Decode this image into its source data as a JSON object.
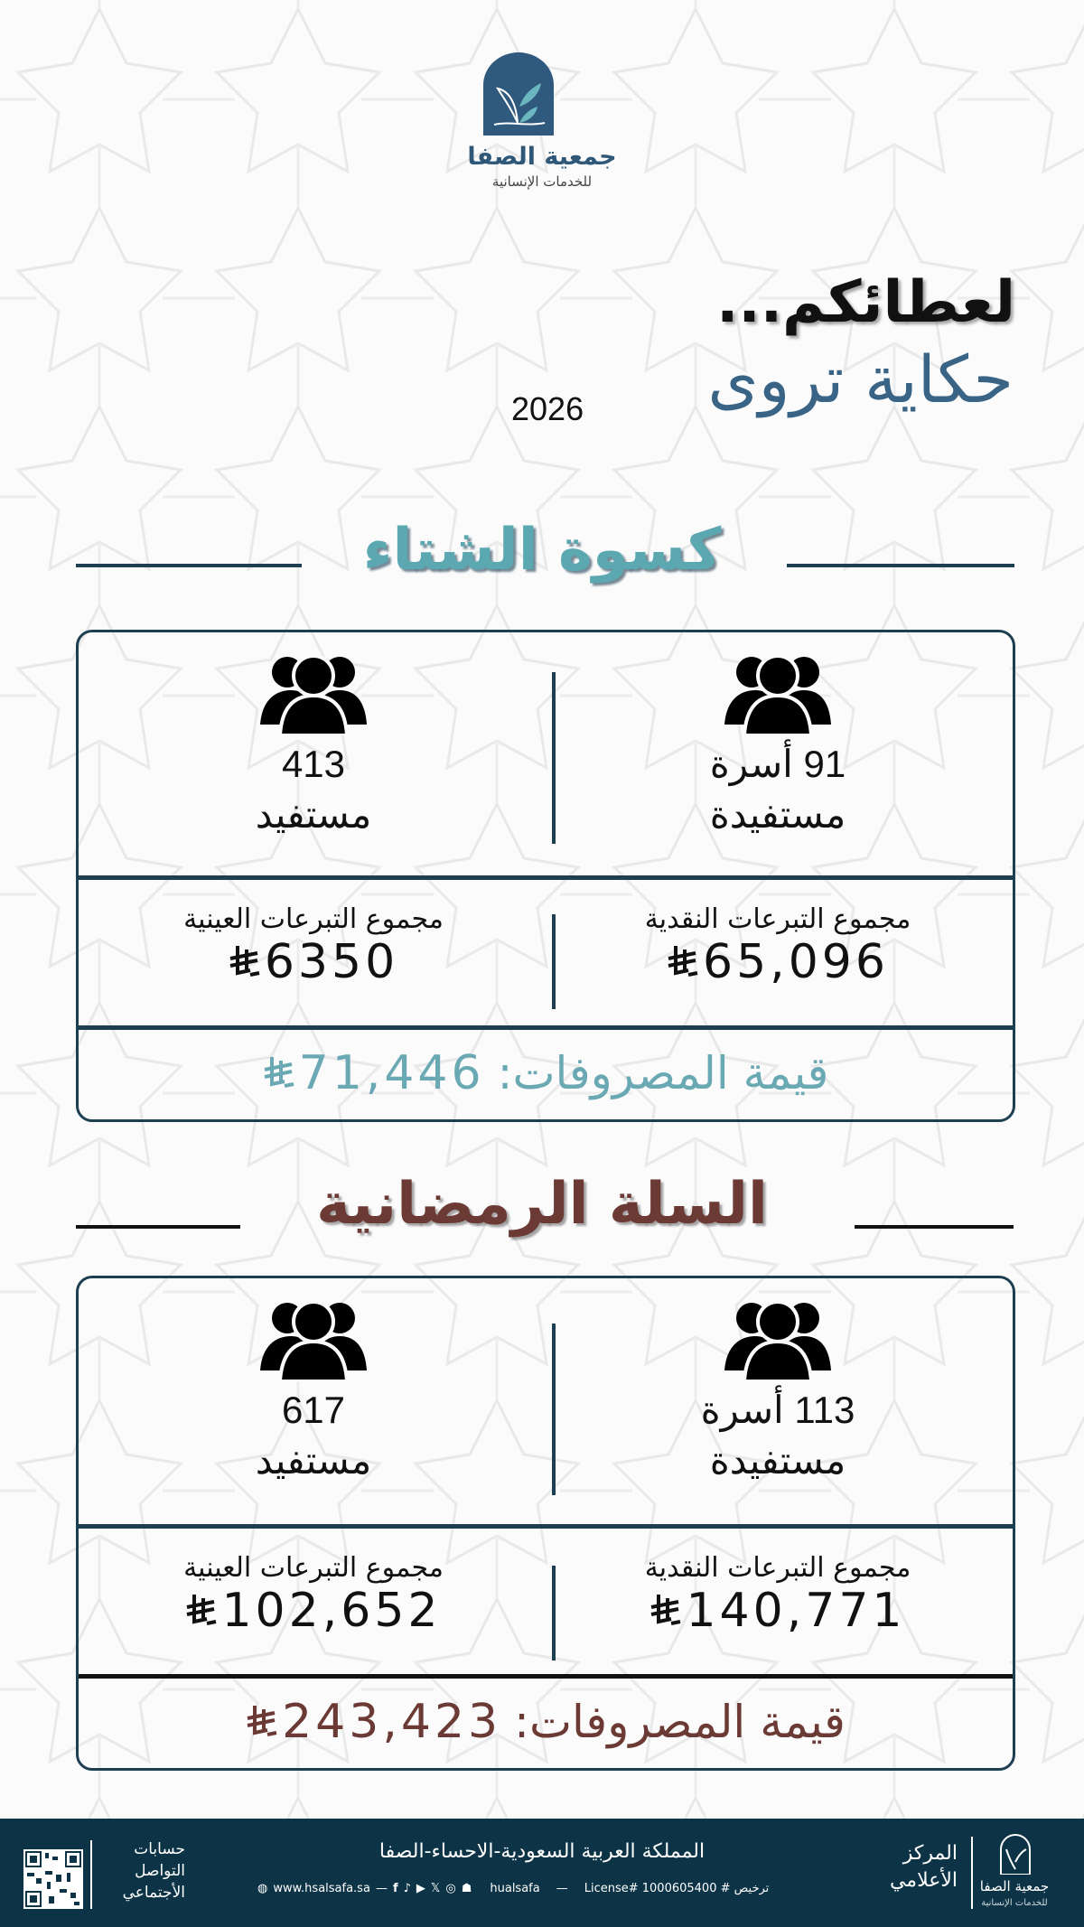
{
  "header": {
    "org_name": "جمعية الصفا",
    "org_subtitle": "للخدمات الإنسانية",
    "title_line1": "لعطائكم...",
    "title_line2": "حكاية تروى",
    "year": "2026"
  },
  "sections": [
    {
      "title": "كسوة الشتاء",
      "title_color": "#5ba8b1",
      "families_value": "91 أسرة",
      "families_label": "مستفيدة",
      "beneficiaries_value": "413",
      "beneficiaries_label": "مستفيد",
      "cash_label": "مجموع التبرعات النقدية",
      "cash_value": "65,096",
      "inkind_label": "مجموع التبرعات العينية",
      "inkind_value": "6350",
      "total_label": "قيمة المصروفات:",
      "total_value": "71,446",
      "total_color": "#6aa9b3"
    },
    {
      "title": "السلة الرمضانية",
      "title_color": "#6b3a35",
      "families_value": "113 أسرة",
      "families_label": "مستفيدة",
      "beneficiaries_value": "617",
      "beneficiaries_label": "مستفيد",
      "cash_label": "مجموع التبرعات النقدية",
      "cash_value": "140,771",
      "inkind_label": "مجموع التبرعات العينية",
      "inkind_value": "102,652",
      "total_label": "قيمة المصروفات:",
      "total_value": "243,423",
      "total_color": "#6b3a35"
    }
  ],
  "footer": {
    "org_name": "جمعية الصفا",
    "org_subtitle": "للخدمات الإنسانية",
    "center_label": "المركز الأعلامي",
    "address": "المملكة العربية السعودية-الاحساء-الصفا",
    "website": "www.hsalsafa.sa",
    "handle": "hualsafa",
    "license": "License# 1000605400 # ترخيص",
    "social_label": "حسابات التواصل الأجتماعي",
    "social_icons": [
      "facebook-icon",
      "tiktok-icon",
      "youtube-icon",
      "x-icon",
      "instagram-icon",
      "snapchat-icon"
    ],
    "bg_color": "#0d3446"
  }
}
